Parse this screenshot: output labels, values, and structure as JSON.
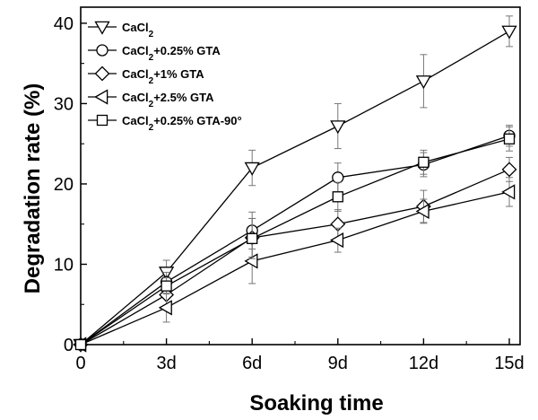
{
  "chart_data": {
    "type": "line",
    "title": "",
    "xlabel": "Soaking  time",
    "ylabel": "Degradation  rate (%)",
    "categories": [
      "0",
      "3d",
      "6d",
      "9d",
      "12d",
      "15d"
    ],
    "ylim": [
      0,
      42
    ],
    "yticks": [
      "0",
      "10",
      "20",
      "30",
      "40"
    ],
    "grid": false,
    "legend_position": "top-left",
    "series": [
      {
        "name": "CaCl2",
        "marker": "triangle-down",
        "values": [
          0,
          9.0,
          22.0,
          27.2,
          32.8,
          39.0
        ],
        "errors": [
          0,
          1.5,
          2.2,
          2.8,
          3.3,
          1.9
        ]
      },
      {
        "name": "CaCl2+0.25% GTA",
        "marker": "circle",
        "values": [
          0,
          7.8,
          14.2,
          20.8,
          22.4,
          26.0
        ],
        "errors": [
          0,
          1.2,
          2.3,
          1.8,
          1.5,
          1.3
        ]
      },
      {
        "name": "CaCl2+1% GTA",
        "marker": "diamond",
        "values": [
          0,
          6.2,
          13.3,
          15.0,
          17.2,
          21.8
        ],
        "errors": [
          0,
          1.4,
          2.4,
          1.8,
          2.0,
          1.5
        ]
      },
      {
        "name": "CaCl2+2.5% GTA",
        "marker": "triangle-left",
        "values": [
          0,
          4.6,
          10.4,
          13.0,
          16.6,
          19.0
        ],
        "errors": [
          0,
          1.8,
          2.8,
          1.5,
          1.5,
          1.8
        ]
      },
      {
        "name": "CaCl2+0.25% GTA-90°",
        "marker": "square",
        "values": [
          0,
          7.3,
          13.2,
          18.4,
          22.7,
          25.6
        ],
        "errors": [
          0,
          1.0,
          2.5,
          1.8,
          1.5,
          1.5
        ]
      }
    ]
  }
}
